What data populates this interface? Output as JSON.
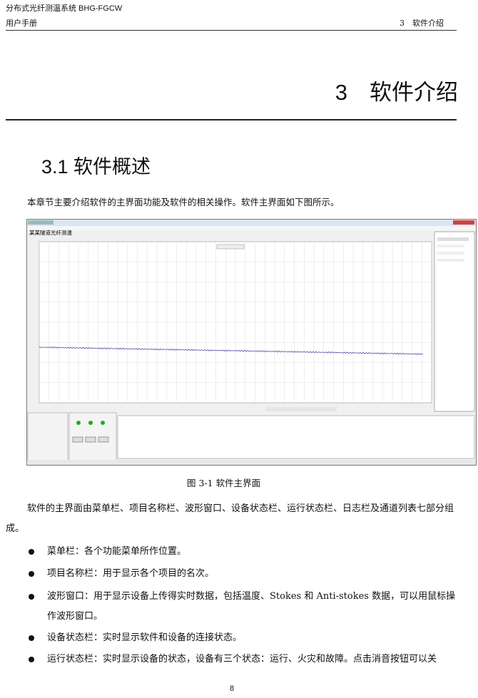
{
  "header": {
    "doc_title": "分布式光纤测温系统 BHG-FGCW",
    "manual": "用户手册",
    "chapter_ref": "3　软件介绍"
  },
  "chapter_title": "3　软件介绍",
  "section_title": "3.1  软件概述",
  "intro": "本章节主要介绍软件的主界面功能及软件的相关操作。软件主界面如下图所示。",
  "figure": {
    "app_title": "某某隧道光纤测温",
    "caption": "图 3-1  软件主界面"
  },
  "paragraph": "软件的主界面由菜单栏、项目名称栏、波形窗口、设备状态栏、运行状态栏、日志栏及通道列表七部分组成。",
  "bullets": [
    "菜单栏：各个功能菜单所作位置。",
    "项目名称栏：用于显示各个项目的名次。",
    "波形窗口：用于显示设备上传得实时数据，包括温度、Stokes 和 Anti-stokes 数据，可以用鼠标操作波形窗口。",
    "设备状态栏：实时显示软件和设备的连接状态。",
    "运行状态栏：实时显示设备的状态，设备有三个状态：运行、火灾和故障。点击消音按钮可以关"
  ],
  "page_number": "8"
}
